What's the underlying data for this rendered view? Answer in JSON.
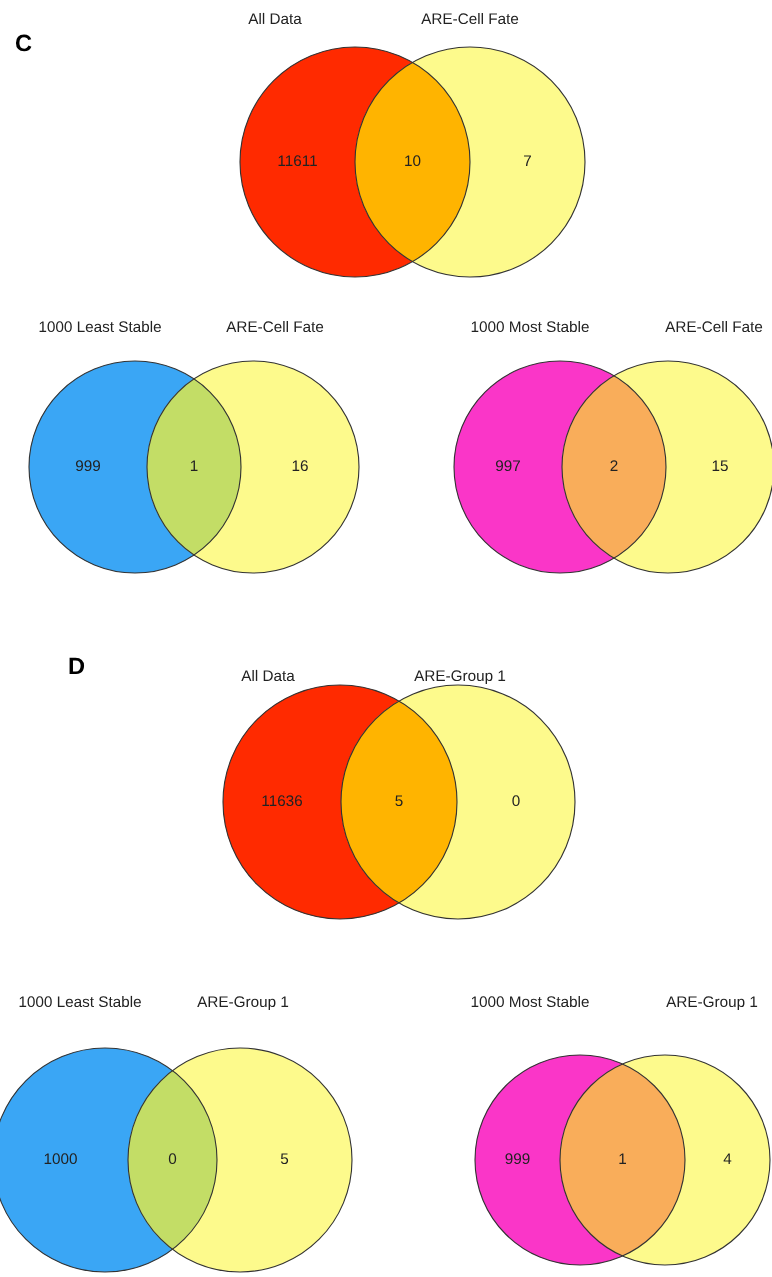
{
  "chart_data": [
    {
      "type": "other",
      "categories": [
        "All Data",
        null,
        "ARE-Cell Fate"
      ],
      "values": [
        11611,
        10,
        7
      ],
      "data_labels": true,
      "colors": [
        "#ff2a00",
        "#ffb400",
        "#fdfa8c"
      ],
      "annotations": [
        "C"
      ]
    },
    {
      "type": "other",
      "categories": [
        "1000 Least Stable",
        null,
        "ARE-Cell Fate"
      ],
      "values": [
        999,
        1,
        16
      ],
      "data_labels": true,
      "colors": [
        "#3aa6f5",
        "#c3dd66",
        "#fdfa8c"
      ]
    },
    {
      "type": "other",
      "categories": [
        "1000 Most Stable",
        null,
        "ARE-Cell Fate"
      ],
      "values": [
        997,
        2,
        15
      ],
      "data_labels": true,
      "colors": [
        "#fa36c8",
        "#f9ad5a",
        "#fdfa8c"
      ]
    },
    {
      "type": "other",
      "categories": [
        "All Data",
        null,
        "ARE-Group 1"
      ],
      "values": [
        11636,
        5,
        0
      ],
      "data_labels": true,
      "colors": [
        "#ff2a00",
        "#ffb400",
        "#fdfa8c"
      ],
      "annotations": [
        "D"
      ]
    },
    {
      "type": "other",
      "categories": [
        "1000 Least Stable",
        null,
        "ARE-Group 1"
      ],
      "values": [
        1000,
        0,
        5
      ],
      "data_labels": true,
      "colors": [
        "#3aa6f5",
        "#c3dd66",
        "#fdfa8c"
      ]
    },
    {
      "type": "other",
      "categories": [
        "1000 Most Stable",
        null,
        "ARE-Group 1"
      ],
      "values": [
        999,
        1,
        4
      ],
      "data_labels": true,
      "colors": [
        "#fa36c8",
        "#f9ad5a",
        "#fdfa8c"
      ]
    }
  ]
}
